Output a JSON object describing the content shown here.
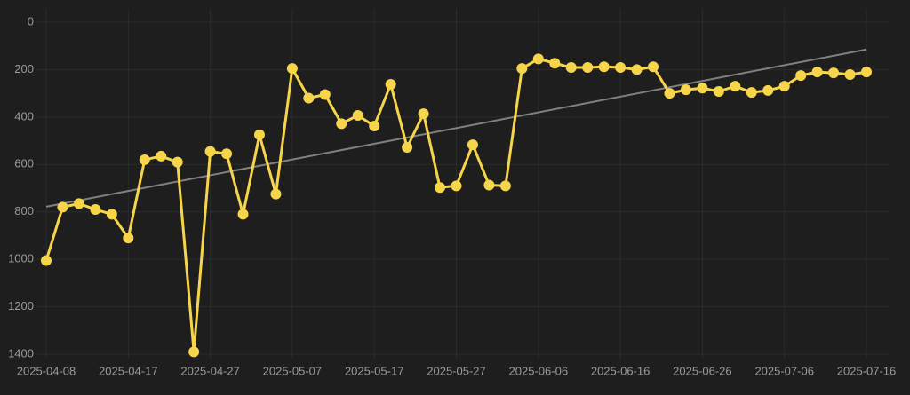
{
  "chart_data": {
    "type": "line",
    "categories": [
      "2025-04-08",
      null,
      null,
      null,
      null,
      "2025-04-17",
      null,
      null,
      null,
      null,
      "2025-04-27",
      null,
      null,
      null,
      null,
      "2025-05-07",
      null,
      null,
      null,
      null,
      "2025-05-17",
      null,
      null,
      null,
      null,
      "2025-05-27",
      null,
      null,
      null,
      null,
      "2025-06-06",
      null,
      null,
      null,
      null,
      "2025-06-16",
      null,
      null,
      null,
      null,
      "2025-06-26",
      null,
      null,
      null,
      null,
      "2025-07-06",
      null,
      null,
      null,
      null,
      "2025-07-16"
    ],
    "series": [
      {
        "color": "#f7d54a",
        "values": [
          1005,
          780,
          765,
          790,
          810,
          910,
          580,
          565,
          590,
          1390,
          545,
          555,
          810,
          475,
          725,
          195,
          320,
          305,
          428,
          393,
          438,
          262,
          528,
          386,
          697,
          690,
          517,
          687,
          690,
          195,
          155,
          173,
          191,
          191,
          188,
          191,
          200,
          188,
          300,
          285,
          278,
          292,
          270,
          296,
          288,
          270,
          225,
          210,
          214,
          221,
          210
        ]
      }
    ],
    "trendline": {
      "start": 778,
      "end": 115,
      "color": "#808080"
    },
    "ylim": [
      0,
      1400
    ],
    "yinverted": true,
    "yticks": [
      0,
      200,
      400,
      600,
      800,
      1000,
      1200,
      1400
    ],
    "grid": true
  }
}
